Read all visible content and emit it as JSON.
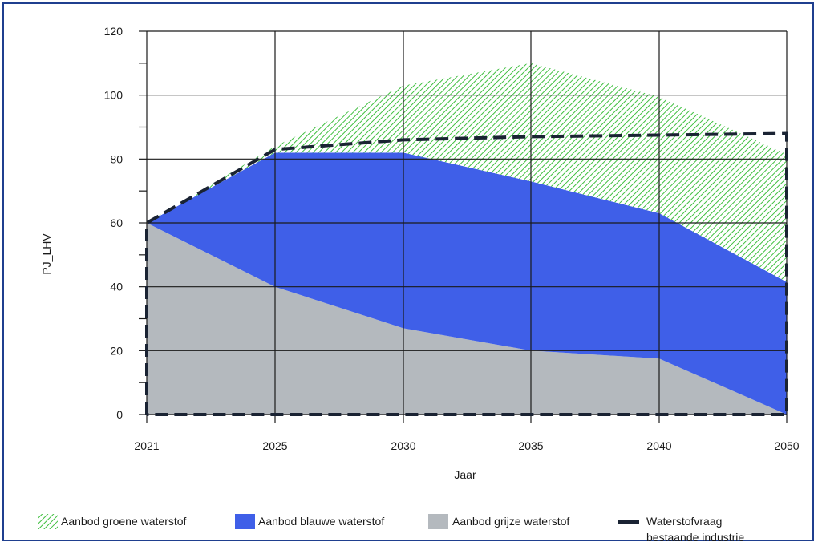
{
  "chart_data": {
    "type": "area",
    "xlabel": "Jaar",
    "ylabel": "PJ_LHV",
    "x": [
      "2021",
      "2025",
      "2030",
      "2035",
      "2040",
      "2050"
    ],
    "ylim": [
      0,
      120
    ],
    "yticks": [
      0,
      20,
      40,
      60,
      80,
      100,
      120
    ],
    "grid": true,
    "legend_position": "bottom",
    "series": [
      {
        "name": "Aanbod grijze waterstof",
        "kind": "area",
        "color": "#b4b9be",
        "values": [
          60,
          40,
          27,
          20,
          17.5,
          0
        ]
      },
      {
        "name": "Aanbod blauwe waterstof",
        "kind": "area",
        "color": "#3f5fe8",
        "values": [
          0,
          42,
          55,
          53,
          45.5,
          41.5
        ]
      },
      {
        "name": "Aanbod groene waterstof",
        "kind": "area",
        "color": "#3fbf3f",
        "pattern": "hatched",
        "values": [
          0,
          2,
          21,
          37,
          36.5,
          40
        ]
      },
      {
        "name": "Waterstofvraag bestaande industrie",
        "kind": "dashed-line",
        "color": "#1a2333",
        "values": [
          60,
          83,
          86,
          87,
          87.5,
          88
        ]
      }
    ]
  },
  "legend": [
    {
      "label": "Aanbod groene waterstof",
      "swatch": "hatched-green"
    },
    {
      "label": "Aanbod blauwe waterstof",
      "swatch": "blue"
    },
    {
      "label": "Aanbod grijze waterstof",
      "swatch": "grey"
    },
    {
      "label_lines": [
        "Waterstofvraag",
        "bestaande industrie"
      ],
      "swatch": "dash"
    }
  ]
}
